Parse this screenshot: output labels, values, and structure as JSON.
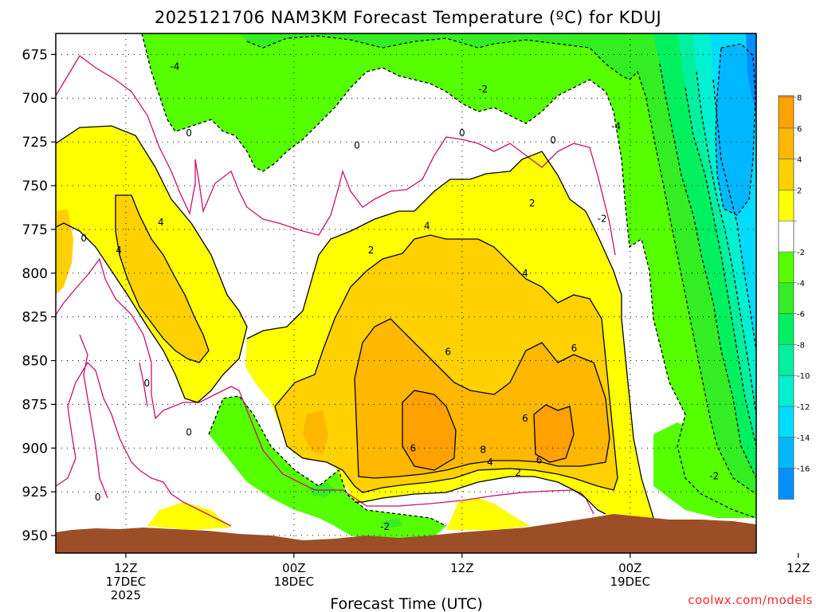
{
  "title": "2025121706 NAM3KM Forecast Temperature (ºC) for KDUJ",
  "credit": "coolwx.com/models",
  "chart_data": {
    "type": "heatmap",
    "title": "2025121706 NAM3KM Forecast Temperature (ºC) for KDUJ",
    "xlabel": "Forecast Time (UTC)",
    "ylabel": "",
    "x_ticks": [
      {
        "lines": [
          "12Z",
          "17DEC",
          "2025"
        ]
      },
      {
        "lines": [
          "00Z",
          "18DEC"
        ]
      },
      {
        "lines": [
          "12Z"
        ]
      },
      {
        "lines": [
          "00Z",
          "19DEC"
        ]
      },
      {
        "lines": [
          "12Z"
        ]
      }
    ],
    "y_ticks": [
      "675",
      "700",
      "725",
      "750",
      "775",
      "800",
      "825",
      "850",
      "875",
      "900",
      "925",
      "950"
    ],
    "y_range_hpa": [
      663,
      960
    ],
    "x_range_hours": [
      -5,
      45
    ],
    "grid": true,
    "colorbar_levels": [
      {
        "label": "8",
        "color": "#ffa100"
      },
      {
        "label": "6",
        "color": "#ffb700"
      },
      {
        "label": "4",
        "color": "#ffd100"
      },
      {
        "label": "2",
        "color": "#ffff00"
      },
      {
        "label": "",
        "color": "#ffffff"
      },
      {
        "label": "-2",
        "color": "#55ff00"
      },
      {
        "label": "-4",
        "color": "#33ee22"
      },
      {
        "label": "-6",
        "color": "#00f060"
      },
      {
        "label": "-8",
        "color": "#00f0a0"
      },
      {
        "label": "-10",
        "color": "#00f0d0"
      },
      {
        "label": "-12",
        "color": "#00dcff"
      },
      {
        "label": "-14",
        "color": "#00b8ff"
      },
      {
        "label": "-16",
        "color": "#0090ff"
      }
    ],
    "colorbar_top_color": "#ff9000",
    "contour_labels": [
      {
        "text": "-4",
        "time": 3.5,
        "p": 682
      },
      {
        "text": "0",
        "time": 4.5,
        "p": 720
      },
      {
        "text": "0",
        "time": -3,
        "p": 780
      },
      {
        "text": "4",
        "time": -0.5,
        "p": 787
      },
      {
        "text": "4",
        "time": 2.5,
        "p": 771
      },
      {
        "text": "0",
        "time": 1.5,
        "p": 863
      },
      {
        "text": "0",
        "time": 4.5,
        "p": 891
      },
      {
        "text": "0",
        "time": -2,
        "p": 928
      },
      {
        "text": "0",
        "time": 16.5,
        "p": 727
      },
      {
        "text": "2",
        "time": 17.5,
        "p": 787
      },
      {
        "text": "4",
        "time": 21.5,
        "p": 773
      },
      {
        "text": "-2",
        "time": 25.5,
        "p": 695
      },
      {
        "text": "0",
        "time": 24,
        "p": 720
      },
      {
        "text": "0",
        "time": 30.5,
        "p": 724
      },
      {
        "text": "2",
        "time": 29,
        "p": 760
      },
      {
        "text": "4",
        "time": 28.5,
        "p": 800
      },
      {
        "text": "6",
        "time": 23,
        "p": 845
      },
      {
        "text": "6",
        "time": 20.5,
        "p": 900
      },
      {
        "text": "8",
        "time": 25.5,
        "p": 901
      },
      {
        "text": "4",
        "time": 26,
        "p": 908
      },
      {
        "text": "2",
        "time": 28,
        "p": 914
      },
      {
        "text": "6",
        "time": 28.5,
        "p": 883
      },
      {
        "text": "6",
        "time": 29.5,
        "p": 907
      },
      {
        "text": "6",
        "time": 32,
        "p": 843
      },
      {
        "text": "-2",
        "time": 18.5,
        "p": 945
      },
      {
        "text": "-4",
        "time": 35,
        "p": 716
      },
      {
        "text": "-2",
        "time": 34,
        "p": 769
      },
      {
        "text": "-2",
        "time": 42,
        "p": 916
      }
    ]
  }
}
